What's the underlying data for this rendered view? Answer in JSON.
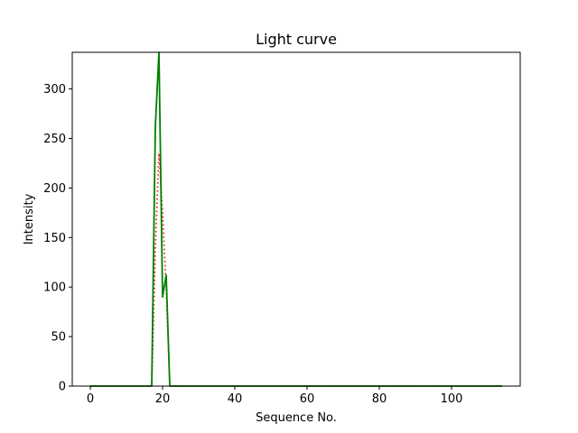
{
  "chart_data": {
    "type": "line",
    "title": "Light curve",
    "xlabel": "Sequence No.",
    "ylabel": "Intensity",
    "xlim": [
      -5,
      119
    ],
    "ylim": [
      0,
      337
    ],
    "xticks": [
      0,
      20,
      40,
      60,
      80,
      100
    ],
    "yticks": [
      0,
      50,
      100,
      150,
      200,
      250,
      300
    ],
    "grid": false,
    "series": [
      {
        "style": "solid",
        "color": "#008000",
        "x": [
          0,
          17,
          18,
          19,
          20,
          21,
          22,
          114
        ],
        "y": [
          0,
          0,
          262,
          337,
          90,
          112,
          0,
          0
        ]
      },
      {
        "style": "dotted",
        "color": "#ff0000",
        "x": [
          0,
          17,
          18,
          19,
          20,
          21,
          22,
          114
        ],
        "y": [
          0,
          0,
          140,
          235,
          175,
          100,
          0,
          0
        ]
      }
    ]
  }
}
